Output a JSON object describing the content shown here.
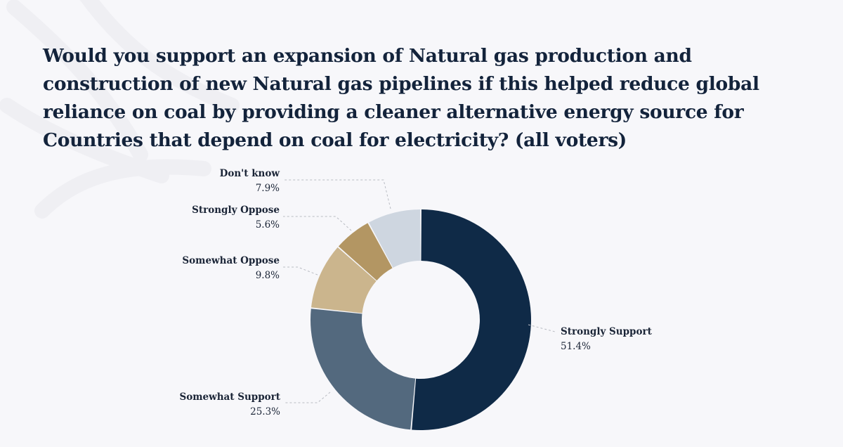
{
  "chart_data": {
    "type": "pie",
    "subtype": "donut",
    "title": "Would you support an expansion of Natural gas production and construction of new Natural gas pipelines if this helped reduce global reliance on coal by providing a cleaner alternative energy source for Countries that depend on coal for electricity? (all voters)",
    "slices": [
      {
        "label": "Strongly Support",
        "value": 51.4,
        "value_label": "51.4%",
        "color": "#0f2a47"
      },
      {
        "label": "Somewhat Support",
        "value": 25.3,
        "value_label": "25.3%",
        "color": "#53697e"
      },
      {
        "label": "Somewhat Oppose",
        "value": 9.8,
        "value_label": "9.8%",
        "color": "#cbb58d"
      },
      {
        "label": "Strongly Oppose",
        "value": 5.6,
        "value_label": "5.6%",
        "color": "#b39663"
      },
      {
        "label": "Don't know",
        "value": 7.9,
        "value_label": "7.9%",
        "color": "#ced6e0"
      }
    ],
    "legend": "none",
    "start_angle": "top",
    "direction": "clockwise"
  },
  "colors": {
    "background": "#f7f7fa",
    "title": "#13233b",
    "label": "#1a2436",
    "leader_line": "#b9bcc3"
  }
}
